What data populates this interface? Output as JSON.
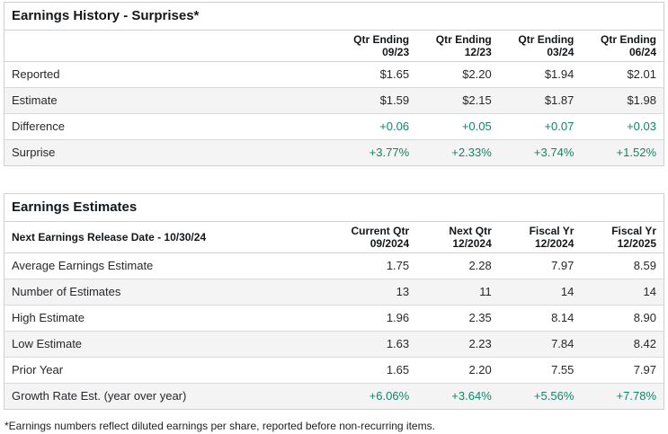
{
  "page": {
    "footnote": "*Earnings numbers reflect diluted earnings per share, reported before non-recurring items."
  },
  "colors": {
    "positive_value": "#118666",
    "table_border": "#cfcfcf",
    "row_divider": "#d9d9d9",
    "alt_row_background": "#f4f4f4",
    "heading_text": "#14171a",
    "body_text": "#26282c"
  },
  "earnings_history": {
    "title": "Earnings History - Surprises*",
    "columns": [
      {
        "line1": "Qtr Ending",
        "line2": "09/23"
      },
      {
        "line1": "Qtr Ending",
        "line2": "12/23"
      },
      {
        "line1": "Qtr Ending",
        "line2": "03/24"
      },
      {
        "line1": "Qtr Ending",
        "line2": "06/24"
      }
    ],
    "rows": [
      {
        "label": "Reported",
        "values": [
          "$1.65",
          "$2.20",
          "$1.94",
          "$2.01"
        ],
        "positive": false
      },
      {
        "label": "Estimate",
        "values": [
          "$1.59",
          "$2.15",
          "$1.87",
          "$1.98"
        ],
        "positive": false
      },
      {
        "label": "Difference",
        "values": [
          "+0.06",
          "+0.05",
          "+0.07",
          "+0.03"
        ],
        "positive": true
      },
      {
        "label": "Surprise",
        "values": [
          "+3.77%",
          "+2.33%",
          "+3.74%",
          "+1.52%"
        ],
        "positive": true
      }
    ]
  },
  "earnings_estimates": {
    "title": "Earnings Estimates",
    "header_label": "Next Earnings Release Date - 10/30/24",
    "columns": [
      {
        "line1": "Current Qtr",
        "line2": "09/2024"
      },
      {
        "line1": "Next Qtr",
        "line2": "12/2024"
      },
      {
        "line1": "Fiscal Yr",
        "line2": "12/2024"
      },
      {
        "line1": "Fiscal Yr",
        "line2": "12/2025"
      }
    ],
    "rows": [
      {
        "label": "Average Earnings Estimate",
        "values": [
          "1.75",
          "2.28",
          "7.97",
          "8.59"
        ],
        "positive": false
      },
      {
        "label": "Number of Estimates",
        "values": [
          "13",
          "11",
          "14",
          "14"
        ],
        "positive": false
      },
      {
        "label": "High Estimate",
        "values": [
          "1.96",
          "2.35",
          "8.14",
          "8.90"
        ],
        "positive": false
      },
      {
        "label": "Low Estimate",
        "values": [
          "1.63",
          "2.23",
          "7.84",
          "8.42"
        ],
        "positive": false
      },
      {
        "label": "Prior Year",
        "values": [
          "1.65",
          "2.20",
          "7.55",
          "7.97"
        ],
        "positive": false
      },
      {
        "label": "Growth Rate Est. (year over year)",
        "values": [
          "+6.06%",
          "+3.64%",
          "+5.56%",
          "+7.78%"
        ],
        "positive": true
      }
    ]
  }
}
